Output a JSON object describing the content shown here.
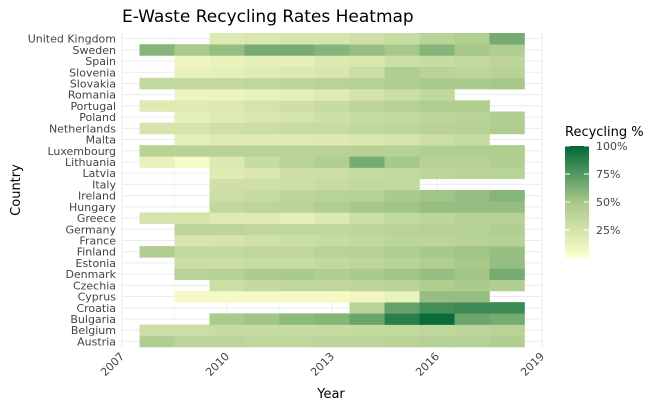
{
  "chart_data": {
    "type": "heatmap",
    "title": "E-Waste Recycling Rates Heatmap",
    "xlabel": "Year",
    "ylabel": "Country",
    "xlim": [
      2007,
      2019
    ],
    "x_ticks": [
      2007,
      2010,
      2013,
      2016,
      2019
    ],
    "years": [
      2008,
      2009,
      2010,
      2011,
      2012,
      2013,
      2014,
      2015,
      2016,
      2017,
      2018
    ],
    "countries": [
      "Austria",
      "Belgium",
      "Bulgaria",
      "Croatia",
      "Cyprus",
      "Czechia",
      "Denmark",
      "Estonia",
      "Finland",
      "France",
      "Germany",
      "Greece",
      "Hungary",
      "Ireland",
      "Italy",
      "Latvia",
      "Lithuania",
      "Luxembourg",
      "Malta",
      "Netherlands",
      "Poland",
      "Portugal",
      "Romania",
      "Slovakia",
      "Slovenia",
      "Spain",
      "Sweden",
      "United Kingdom"
    ],
    "values": [
      [
        45,
        38,
        38,
        36,
        36,
        38,
        38,
        40,
        42,
        42,
        45
      ],
      [
        30,
        30,
        32,
        32,
        32,
        32,
        34,
        35,
        36,
        38,
        40
      ],
      [
        null,
        null,
        48,
        52,
        58,
        60,
        68,
        88,
        98,
        68,
        65
      ],
      [
        null,
        null,
        null,
        null,
        null,
        null,
        40,
        70,
        80,
        82,
        82
      ],
      [
        null,
        5,
        5,
        5,
        5,
        5,
        8,
        12,
        55,
        55,
        null
      ],
      [
        null,
        null,
        30,
        34,
        36,
        36,
        38,
        40,
        45,
        48,
        45
      ],
      [
        null,
        40,
        42,
        46,
        48,
        45,
        48,
        52,
        55,
        52,
        65
      ],
      [
        null,
        30,
        30,
        32,
        32,
        35,
        38,
        40,
        45,
        50,
        55
      ],
      [
        45,
        35,
        35,
        36,
        36,
        40,
        42,
        45,
        50,
        52,
        55
      ],
      [
        null,
        22,
        25,
        28,
        30,
        32,
        35,
        38,
        38,
        40,
        42
      ],
      [
        null,
        38,
        38,
        36,
        36,
        36,
        38,
        40,
        42,
        42,
        45
      ],
      [
        25,
        25,
        18,
        18,
        15,
        20,
        30,
        35,
        38,
        42,
        42
      ],
      [
        null,
        null,
        35,
        38,
        40,
        45,
        50,
        52,
        55,
        55,
        55
      ],
      [
        null,
        null,
        30,
        33,
        38,
        40,
        42,
        48,
        52,
        55,
        60
      ],
      [
        null,
        null,
        28,
        28,
        30,
        32,
        35,
        35,
        null,
        null,
        null
      ],
      [
        null,
        null,
        18,
        22,
        28,
        30,
        32,
        35,
        38,
        40,
        40
      ],
      [
        12,
        5,
        20,
        32,
        40,
        45,
        65,
        50,
        42,
        42,
        45
      ],
      [
        40,
        40,
        40,
        40,
        40,
        40,
        42,
        42,
        45,
        45,
        45
      ],
      [
        null,
        15,
        18,
        18,
        18,
        20,
        22,
        25,
        30,
        33,
        null
      ],
      [
        25,
        25,
        28,
        30,
        32,
        32,
        35,
        38,
        40,
        42,
        45
      ],
      [
        null,
        15,
        18,
        22,
        25,
        28,
        32,
        35,
        38,
        40,
        45
      ],
      [
        18,
        18,
        20,
        25,
        28,
        32,
        38,
        42,
        45,
        45,
        null
      ],
      [
        null,
        10,
        10,
        12,
        15,
        18,
        25,
        30,
        35,
        null,
        null
      ],
      [
        35,
        35,
        35,
        36,
        38,
        40,
        42,
        45,
        48,
        48,
        50
      ],
      [
        null,
        12,
        15,
        18,
        20,
        22,
        30,
        45,
        40,
        38,
        40
      ],
      [
        null,
        8,
        12,
        15,
        15,
        20,
        22,
        30,
        32,
        35,
        38
      ],
      [
        60,
        48,
        55,
        65,
        65,
        60,
        55,
        50,
        60,
        50,
        45
      ],
      [
        null,
        null,
        20,
        22,
        24,
        24,
        28,
        32,
        40,
        45,
        65
      ]
    ],
    "legend": {
      "title": "Recycling %",
      "ticks": [
        100,
        75,
        50,
        25
      ],
      "tick_labels": [
        "100%",
        "75%",
        "50%",
        "25%"
      ],
      "range": [
        0,
        100
      ],
      "placement": "right"
    },
    "colors": {
      "low": "#ffffcc",
      "mid": "#a8c88a",
      "high": "#006837",
      "grid": "#ebebeb",
      "background": "#ffffff"
    },
    "grid": true
  }
}
